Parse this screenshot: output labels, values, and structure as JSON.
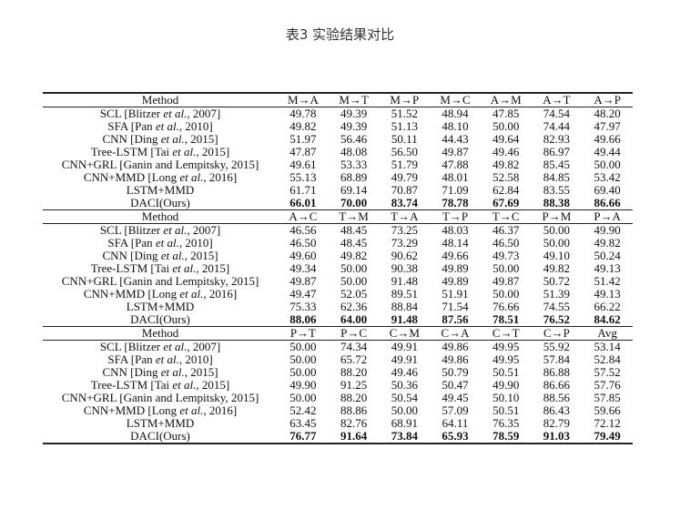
{
  "caption": "表3 实验结果对比",
  "sections": [
    {
      "header": [
        "Method",
        "M→A",
        "M→T",
        "M→P",
        "M→C",
        "A→M",
        "A→T",
        "A→P"
      ],
      "rows": [
        {
          "method": [
            "SCL [Blitzer ",
            "et al.",
            ", 2007]"
          ],
          "values": [
            "49.78",
            "49.39",
            "51.52",
            "48.94",
            "47.85",
            "74.54",
            "48.20"
          ]
        },
        {
          "method": [
            "SFA [Pan ",
            "et al.",
            ", 2010]"
          ],
          "values": [
            "49.82",
            "49.39",
            "51.13",
            "48.10",
            "50.00",
            "74.44",
            "47.97"
          ]
        },
        {
          "method": [
            "CNN [Ding ",
            "et al.",
            ", 2015]"
          ],
          "values": [
            "51.97",
            "56.46",
            "50.11",
            "44.43",
            "49.64",
            "82.93",
            "49.66"
          ]
        },
        {
          "method": [
            "Tree-LSTM [Tai ",
            "et al.",
            ", 2015]"
          ],
          "values": [
            "47.87",
            "48.08",
            "56.50",
            "49.87",
            "49.46",
            "86.97",
            "49.44"
          ]
        },
        {
          "method": [
            "CNN+GRL [Ganin and Lempitsky, 2015]",
            "",
            ""
          ],
          "values": [
            "49.61",
            "53.33",
            "51.79",
            "47.88",
            "49.82",
            "85.45",
            "50.00"
          ]
        },
        {
          "method": [
            "CNN+MMD [Long ",
            "et al.",
            ", 2016]"
          ],
          "values": [
            "55.13",
            "68.89",
            "49.79",
            "48.01",
            "52.58",
            "84.85",
            "53.42"
          ]
        },
        {
          "method": [
            "LSTM+MMD",
            "",
            ""
          ],
          "values": [
            "61.71",
            "69.14",
            "70.87",
            "71.09",
            "62.84",
            "83.55",
            "69.40"
          ]
        },
        {
          "method": [
            "DACI(Ours)",
            "",
            ""
          ],
          "values": [
            "66.01",
            "70.00",
            "83.74",
            "78.78",
            "67.69",
            "88.38",
            "86.66"
          ]
        }
      ]
    },
    {
      "header": [
        "Method",
        "A→C",
        "T→M",
        "T→A",
        "T→P",
        "T→C",
        "P→M",
        "P→A"
      ],
      "rows": [
        {
          "method": [
            "SCL [Blitzer ",
            "et al.",
            ", 2007]"
          ],
          "values": [
            "46.56",
            "48.45",
            "73.25",
            "48.03",
            "46.37",
            "50.00",
            "49.90"
          ]
        },
        {
          "method": [
            "SFA [Pan ",
            "et al.",
            ", 2010]"
          ],
          "values": [
            "46.50",
            "48.45",
            "73.29",
            "48.14",
            "46.50",
            "50.00",
            "49.82"
          ]
        },
        {
          "method": [
            "CNN [Ding ",
            "et al.",
            ", 2015]"
          ],
          "values": [
            "49.60",
            "49.82",
            "90.62",
            "49.66",
            "49.73",
            "49.10",
            "50.24"
          ]
        },
        {
          "method": [
            "Tree-LSTM [Tai ",
            "et al.",
            ", 2015]"
          ],
          "values": [
            "49.34",
            "50.00",
            "90.38",
            "49.89",
            "50.00",
            "49.82",
            "49.13"
          ]
        },
        {
          "method": [
            "CNN+GRL [Ganin and Lempitsky, 2015]",
            "",
            ""
          ],
          "values": [
            "49.87",
            "50.00",
            "91.48",
            "49.89",
            "49.87",
            "50.72",
            "51.42"
          ]
        },
        {
          "method": [
            "CNN+MMD [Long ",
            "et al.",
            ", 2016]"
          ],
          "values": [
            "49.47",
            "52.05",
            "89.51",
            "51.91",
            "50.00",
            "51.39",
            "49.13"
          ]
        },
        {
          "method": [
            "LSTM+MMD",
            "",
            ""
          ],
          "values": [
            "75.33",
            "62.36",
            "88.84",
            "71.54",
            "76.66",
            "74.55",
            "66.22"
          ]
        },
        {
          "method": [
            "DACI(Ours)",
            "",
            ""
          ],
          "values": [
            "88.06",
            "64.00",
            "91.48",
            "87.56",
            "78.51",
            "76.52",
            "84.62"
          ]
        }
      ]
    },
    {
      "header": [
        "Method",
        "P→T",
        "P→C",
        "C→M",
        "C→A",
        "C→T",
        "C→P",
        "Avg"
      ],
      "rows": [
        {
          "method": [
            "SCL [Blitzer ",
            "et al.",
            ", 2007]"
          ],
          "values": [
            "50.00",
            "74.34",
            "49.91",
            "49.86",
            "49.95",
            "55.92",
            "53.14"
          ]
        },
        {
          "method": [
            "SFA [Pan ",
            "et al.",
            ", 2010]"
          ],
          "values": [
            "50.00",
            "65.72",
            "49.91",
            "49.86",
            "49.95",
            "57.84",
            "52.84"
          ]
        },
        {
          "method": [
            "CNN [Ding ",
            "et al.",
            ", 2015]"
          ],
          "values": [
            "50.00",
            "88.20",
            "49.46",
            "50.79",
            "50.51",
            "86.88",
            "57.52"
          ]
        },
        {
          "method": [
            "Tree-LSTM [Tai ",
            "et al.",
            ", 2015]"
          ],
          "values": [
            "49.90",
            "91.25",
            "50.36",
            "50.47",
            "49.90",
            "86.66",
            "57.76"
          ]
        },
        {
          "method": [
            "CNN+GRL [Ganin and Lempitsky, 2015]",
            "",
            ""
          ],
          "values": [
            "50.00",
            "88.20",
            "50.54",
            "49.45",
            "50.10",
            "88.56",
            "57.85"
          ]
        },
        {
          "method": [
            "CNN+MMD [Long ",
            "et al.",
            ", 2016]"
          ],
          "values": [
            "52.42",
            "88.86",
            "50.00",
            "57.09",
            "50.51",
            "86.43",
            "59.66"
          ]
        },
        {
          "method": [
            "LSTM+MMD",
            "",
            ""
          ],
          "values": [
            "63.45",
            "82.76",
            "68.91",
            "64.11",
            "76.35",
            "82.79",
            "72.12"
          ]
        },
        {
          "method": [
            "DACI(Ours)",
            "",
            ""
          ],
          "values": [
            "76.77",
            "91.64",
            "73.84",
            "65.93",
            "78.59",
            "91.03",
            "79.49"
          ]
        }
      ]
    }
  ]
}
